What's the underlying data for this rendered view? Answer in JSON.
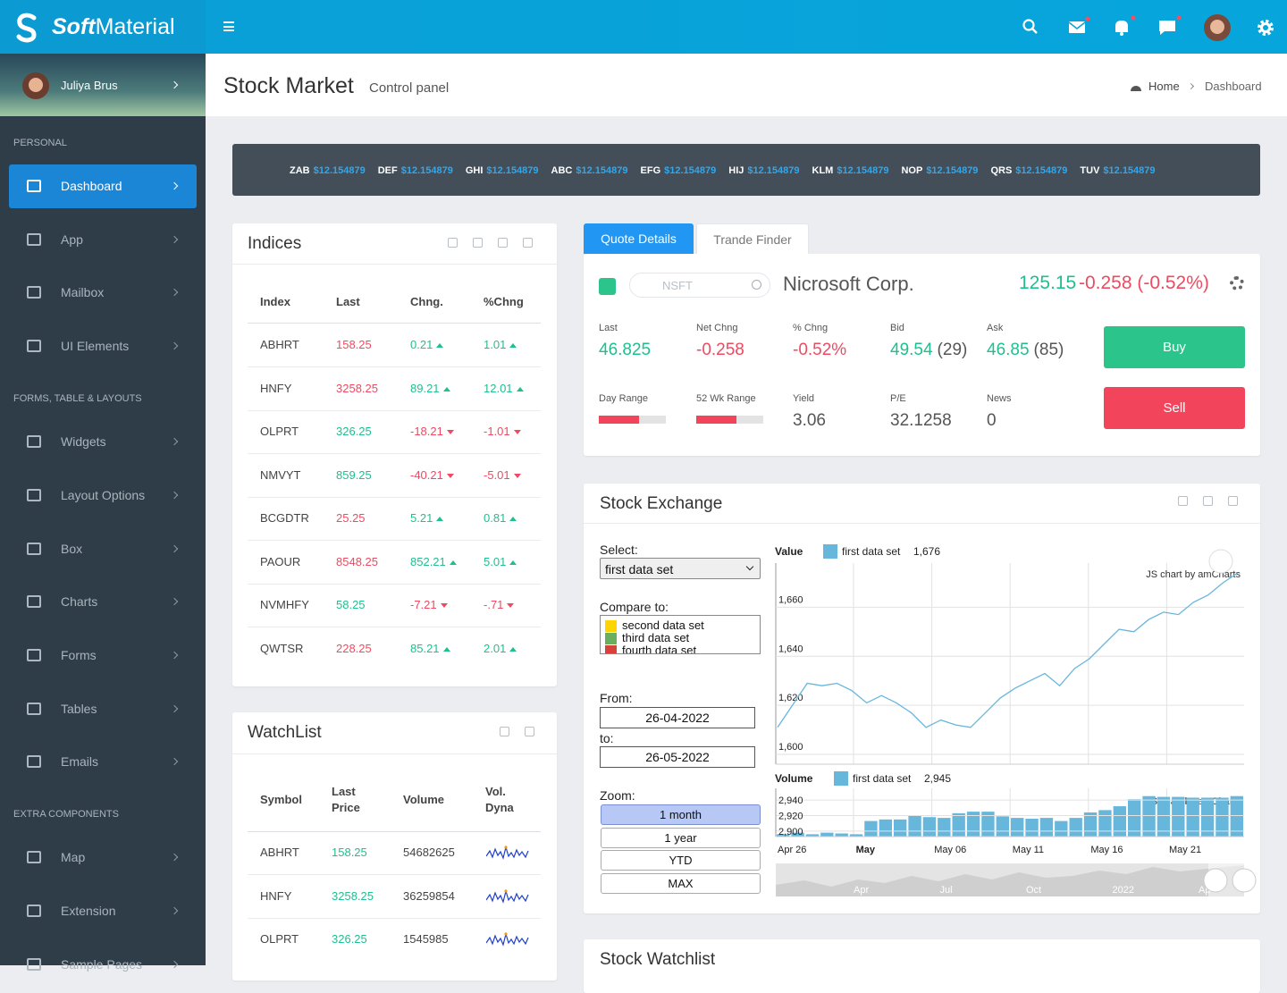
{
  "brand": {
    "bold": "Soft",
    "light": "Material"
  },
  "user": {
    "name": "Juliya Brus"
  },
  "sidebar": [
    {
      "heading": "PERSONAL",
      "items": [
        "Dashboard",
        "App",
        "Mailbox",
        "UI Elements"
      ]
    },
    {
      "heading": "FORMS, TABLE & LAYOUTS",
      "items": [
        "Widgets",
        "Layout Options",
        "Box",
        "Charts",
        "Forms",
        "Tables",
        "Emails"
      ]
    },
    {
      "heading": "EXTRA COMPONENTS",
      "items": [
        "Map",
        "Extension",
        "Sample Pages"
      ]
    }
  ],
  "header": {
    "title": "Stock Market",
    "subtitle": "Control panel",
    "breadcrumb": [
      "Home",
      "Dashboard"
    ]
  },
  "ticker": [
    {
      "symbol": "ZAB",
      "price": "$12.154879"
    },
    {
      "symbol": "DEF",
      "price": "$12.154879"
    },
    {
      "symbol": "GHI",
      "price": "$12.154879"
    },
    {
      "symbol": "ABC",
      "price": "$12.154879"
    },
    {
      "symbol": "EFG",
      "price": "$12.154879"
    },
    {
      "symbol": "HIJ",
      "price": "$12.154879"
    },
    {
      "symbol": "KLM",
      "price": "$12.154879"
    },
    {
      "symbol": "NOP",
      "price": "$12.154879"
    },
    {
      "symbol": "QRS",
      "price": "$12.154879"
    },
    {
      "symbol": "TUV",
      "price": "$12.154879"
    }
  ],
  "indices": {
    "title": "Indices",
    "columns": [
      "Index",
      "Last",
      "Chng.",
      "%Chng"
    ],
    "rows": [
      {
        "index": "ABHRT",
        "last": "158.25",
        "chng": "0.21",
        "pct": "1.01",
        "trend": "up",
        "last_color": "#ee4a61"
      },
      {
        "index": "HNFY",
        "last": "3258.25",
        "chng": "89.21",
        "pct": "12.01",
        "trend": "up",
        "last_color": "#ee4a61"
      },
      {
        "index": "OLPRT",
        "last": "326.25",
        "chng": "-18.21",
        "pct": "-1.01",
        "trend": "down",
        "last_color": "#1fbf8f"
      },
      {
        "index": "NMVYT",
        "last": "859.25",
        "chng": "-40.21",
        "pct": "-5.01",
        "trend": "down",
        "last_color": "#1fbf8f"
      },
      {
        "index": "BCGDTR",
        "last": "25.25",
        "chng": "5.21",
        "pct": "0.81",
        "trend": "up",
        "last_color": "#ee4a61"
      },
      {
        "index": "PAOUR",
        "last": "8548.25",
        "chng": "852.21",
        "pct": "5.01",
        "trend": "up",
        "last_color": "#ee4a61"
      },
      {
        "index": "NVMHFY",
        "last": "58.25",
        "chng": "-7.21",
        "pct": "-.71",
        "trend": "down",
        "last_color": "#1fbf8f"
      },
      {
        "index": "QWTSR",
        "last": "228.25",
        "chng": "85.21",
        "pct": "2.01",
        "trend": "up",
        "last_color": "#ee4a61"
      }
    ]
  },
  "watchlist": {
    "title": "WatchList",
    "columns": [
      "Symbol",
      "Last Price",
      "Volume",
      "Vol. Dyna"
    ],
    "rows": [
      [
        "ABHRT",
        "158.25",
        "54682625"
      ],
      [
        "HNFY",
        "3258.25",
        "36259854"
      ],
      [
        "OLPRT",
        "326.25",
        "1545985"
      ]
    ]
  },
  "quote": {
    "tabs": [
      "Quote Details",
      "Trande Finder"
    ],
    "search": "NSFT",
    "company": "Nicrosoft Corp.",
    "price": "125.15",
    "change": "-0.258 (-0.52%)",
    "stats": [
      {
        "label": "Last",
        "value": "46.825",
        "color": "#1fbf8f"
      },
      {
        "label": "Net Chng",
        "value": "-0.258",
        "color": "#ee4a61"
      },
      {
        "label": "% Chng",
        "value": "-0.52%",
        "color": "#ee4a61"
      },
      {
        "label": "Bid",
        "value": "49.54",
        "extra": "(29)",
        "color": "#1fbf8f"
      },
      {
        "label": "Ask",
        "value": "46.85",
        "extra": "(85)",
        "color": "#1fbf8f"
      },
      {
        "label": "Day Range"
      },
      {
        "label": "52 Wk Range"
      },
      {
        "label": "Yield",
        "value": "3.06"
      },
      {
        "label": "P/E",
        "value": "32.1258"
      },
      {
        "label": "News",
        "value": "0"
      }
    ],
    "buy": "Buy",
    "sell": "Sell"
  },
  "stock_exchange": {
    "title": "Stock Exchange",
    "select_label": "Select:",
    "selected": "first data set",
    "compare_label": "Compare to:",
    "compare": [
      {
        "name": "second data set",
        "color": "#ffd400"
      },
      {
        "name": "third data set",
        "color": "#6aaf5e"
      },
      {
        "name": "fourth data set",
        "color": "#d9423c"
      }
    ],
    "from_label": "From:",
    "from": "26-04-2022",
    "to_label": "to:",
    "to": "26-05-2022",
    "zoom_label": "Zoom:",
    "zoom": [
      "1 month",
      "1 year",
      "YTD",
      "MAX"
    ],
    "chart": {
      "value_title": "Value",
      "series_name": "first data set",
      "value_readout": "1,676",
      "credit": "JS chart by amCharts",
      "color": "#67b7dc",
      "values": [
        1611,
        1620,
        1629,
        1628,
        1629,
        1626,
        1621,
        1624,
        1621,
        1617,
        1611,
        1614,
        1612,
        1611,
        1617,
        1623,
        1627,
        1630,
        1633,
        1628,
        1635,
        1639,
        1645,
        1651,
        1650,
        1655,
        1658,
        1657,
        1662,
        1665,
        1670,
        1674
      ],
      "ylim": [
        1596,
        1678
      ],
      "yticks": [
        {
          "value": 1660,
          "label": "1,660"
        },
        {
          "value": 1640,
          "label": "1,640"
        },
        {
          "value": 1620,
          "label": "1,620"
        },
        {
          "value": 1600,
          "label": "1,600"
        }
      ],
      "volume_title": "Volume",
      "volume_readout": "2,945",
      "volumes": [
        2896,
        2898,
        2896,
        2898,
        2897,
        2896,
        2913,
        2915,
        2915,
        2920,
        2918,
        2917,
        2923,
        2925,
        2925,
        2919,
        2917,
        2916,
        2917,
        2913,
        2917,
        2924,
        2927,
        2932,
        2941,
        2945,
        2944,
        2944,
        2943,
        2943,
        2943,
        2945
      ],
      "vlim": [
        2893,
        2955
      ],
      "vticks": [
        {
          "value": 2940,
          "label": "2,940"
        },
        {
          "value": 2920,
          "label": "2,920"
        },
        {
          "value": 2900,
          "label": "2,900"
        }
      ],
      "x_labels": [
        "Apr 26",
        "May",
        "May 06",
        "May 11",
        "May 16",
        "May 21"
      ],
      "navigator_labels": [
        "Apr",
        "Jul",
        "Oct",
        "2022",
        "Ap"
      ]
    }
  },
  "stock_watchlist": {
    "title": "Stock Watchlist"
  }
}
